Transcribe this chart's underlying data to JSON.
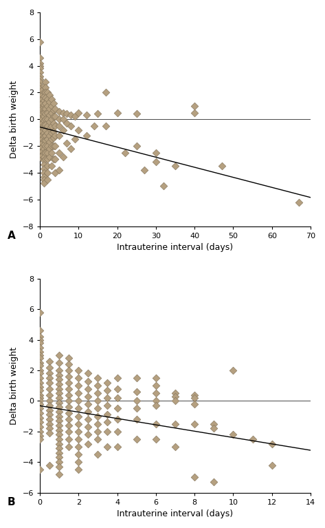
{
  "diamond_color": "#b5a080",
  "diamond_edge_color": "#8a7a60",
  "line_color": "#000000",
  "background_color": "#ffffff",
  "marker_size": 7,
  "marker_edge_width": 0.5,
  "plotA": {
    "slope": -0.0753,
    "intercept": -0.581,
    "xlim": [
      0,
      70
    ],
    "ylim": [
      -8,
      8
    ],
    "xticks": [
      0,
      10,
      20,
      30,
      40,
      50,
      60,
      70
    ],
    "yticks": [
      -8,
      -6,
      -4,
      -2,
      0,
      2,
      4,
      6,
      8
    ],
    "xlabel": "Intrauterine interval (days)",
    "ylabel": "Delta birth weight",
    "label": "A",
    "x_data": [
      0,
      0,
      0,
      0,
      0,
      0,
      0,
      0,
      0,
      0,
      0,
      0,
      0,
      0,
      0,
      0,
      0,
      0,
      0,
      0,
      0,
      0,
      0,
      0,
      0,
      0,
      0,
      0,
      0,
      0,
      0.5,
      0.5,
      0.5,
      0.5,
      0.5,
      0.5,
      0.5,
      0.5,
      0.5,
      0.5,
      0.5,
      0.5,
      0.5,
      0.5,
      0.5,
      0.5,
      1,
      1,
      1,
      1,
      1,
      1,
      1,
      1,
      1,
      1,
      1,
      1,
      1,
      1,
      1,
      1,
      1,
      1,
      1,
      1,
      1,
      1,
      1,
      1,
      1,
      1.5,
      1.5,
      1.5,
      1.5,
      1.5,
      1.5,
      1.5,
      1.5,
      1.5,
      1.5,
      1.5,
      1.5,
      1.5,
      1.5,
      1.5,
      2,
      2,
      2,
      2,
      2,
      2,
      2,
      2,
      2,
      2,
      2,
      2,
      2,
      2,
      2.5,
      2.5,
      2.5,
      2.5,
      2.5,
      2.5,
      2.5,
      2.5,
      2.5,
      2.5,
      3,
      3,
      3,
      3,
      3,
      3,
      3,
      3,
      3,
      3,
      3.5,
      3.5,
      3.5,
      3.5,
      3.5,
      3.5,
      3.5,
      3.5,
      4,
      4,
      4,
      4,
      4,
      4,
      4,
      5,
      5,
      5,
      5,
      5,
      5,
      6,
      6,
      6,
      6,
      7,
      7,
      7,
      8,
      8,
      8,
      9,
      9,
      10,
      10,
      12,
      12,
      14,
      15,
      17,
      17,
      20,
      22,
      25,
      25,
      27,
      30,
      30,
      32,
      35,
      40,
      40,
      47,
      67
    ],
    "y_data": [
      5.8,
      4.6,
      4.2,
      4.0,
      3.8,
      3.5,
      3.2,
      3.0,
      2.8,
      2.5,
      2.3,
      2.0,
      1.8,
      1.5,
      1.2,
      0.9,
      0.7,
      0.4,
      0.2,
      0.0,
      -0.2,
      -0.5,
      -0.8,
      -1.1,
      -1.4,
      -1.7,
      -2.0,
      -2.3,
      -2.5,
      -2.8,
      2.2,
      1.8,
      1.5,
      1.2,
      0.8,
      0.4,
      0.0,
      -0.3,
      -0.6,
      -0.9,
      -1.2,
      -1.5,
      -1.8,
      -2.1,
      -2.4,
      -2.7,
      2.5,
      2.0,
      1.7,
      1.4,
      1.1,
      0.8,
      0.5,
      0.2,
      -0.1,
      -0.4,
      -0.7,
      -1.0,
      -1.3,
      -1.6,
      -1.9,
      -2.2,
      -2.5,
      -2.8,
      -3.1,
      -3.4,
      -3.7,
      -4.0,
      -4.3,
      -4.5,
      -4.8,
      2.8,
      2.4,
      2.0,
      1.6,
      1.2,
      0.8,
      0.4,
      0.0,
      -0.4,
      -0.8,
      -1.2,
      -1.6,
      -2.0,
      -2.5,
      -3.0,
      2.0,
      1.5,
      1.0,
      0.5,
      0.0,
      -0.5,
      -1.0,
      -1.5,
      -2.0,
      -2.5,
      -3.0,
      -3.5,
      -4.0,
      -4.5,
      1.8,
      1.3,
      0.8,
      0.3,
      -0.2,
      -0.7,
      -1.2,
      -1.7,
      -2.2,
      -2.8,
      1.5,
      1.0,
      0.5,
      0.0,
      -0.5,
      -1.0,
      -1.5,
      -2.0,
      -2.5,
      -3.5,
      1.2,
      0.7,
      0.2,
      -0.3,
      -0.9,
      -1.4,
      -2.0,
      -3.0,
      0.8,
      0.2,
      -0.5,
      -1.2,
      -2.0,
      -3.0,
      -4.0,
      0.6,
      0.0,
      -0.5,
      -1.2,
      -2.5,
      -3.8,
      0.5,
      0.0,
      -0.8,
      -2.8,
      0.4,
      -0.3,
      -1.8,
      0.3,
      -0.5,
      -2.2,
      0.2,
      -1.5,
      0.5,
      -0.8,
      0.3,
      -1.2,
      -0.5,
      0.4,
      2.0,
      -0.5,
      0.5,
      -2.5,
      0.4,
      -2.0,
      -3.8,
      -2.5,
      -3.2,
      -5.0,
      -3.5,
      0.5,
      1.0,
      -3.5,
      -6.2
    ]
  },
  "plotB": {
    "slope": -0.2081,
    "intercept": -0.3174,
    "xlim": [
      0,
      14
    ],
    "ylim": [
      -6,
      8
    ],
    "xticks": [
      0,
      2,
      4,
      6,
      8,
      10,
      12,
      14
    ],
    "yticks": [
      -6,
      -4,
      -2,
      0,
      2,
      4,
      6,
      8
    ],
    "xlabel": "Intrauterine interval (days)",
    "ylabel": "Delta birth weight",
    "label": "B",
    "x_data": [
      0,
      0,
      0,
      0,
      0,
      0,
      0,
      0,
      0,
      0,
      0,
      0,
      0,
      0,
      0,
      0,
      0,
      0,
      0,
      0,
      0,
      0,
      0,
      0,
      0,
      0,
      0,
      0,
      0,
      0,
      0.5,
      0.5,
      0.5,
      0.5,
      0.5,
      0.5,
      0.5,
      0.5,
      0.5,
      0.5,
      0.5,
      0.5,
      0.5,
      0.5,
      0.5,
      0.5,
      1,
      1,
      1,
      1,
      1,
      1,
      1,
      1,
      1,
      1,
      1,
      1,
      1,
      1,
      1,
      1,
      1,
      1,
      1,
      1,
      1,
      1,
      1,
      1,
      1,
      1.5,
      1.5,
      1.5,
      1.5,
      1.5,
      1.5,
      1.5,
      1.5,
      1.5,
      1.5,
      1.5,
      1.5,
      1.5,
      1.5,
      1.5,
      2,
      2,
      2,
      2,
      2,
      2,
      2,
      2,
      2,
      2,
      2,
      2,
      2,
      2,
      2.5,
      2.5,
      2.5,
      2.5,
      2.5,
      2.5,
      2.5,
      2.5,
      2.5,
      2.5,
      3,
      3,
      3,
      3,
      3,
      3,
      3,
      3,
      3,
      3,
      3.5,
      3.5,
      3.5,
      3.5,
      3.5,
      3.5,
      3.5,
      3.5,
      4,
      4,
      4,
      4,
      4,
      4,
      4,
      5,
      5,
      5,
      5,
      5,
      5,
      6,
      6,
      6,
      6,
      6,
      6,
      6,
      7,
      7,
      7,
      7,
      7,
      8,
      8,
      8,
      8,
      8,
      9,
      9,
      9,
      10,
      10,
      11,
      12,
      12
    ],
    "y_data": [
      5.8,
      4.6,
      4.2,
      4.0,
      3.8,
      3.5,
      3.2,
      3.0,
      2.8,
      2.5,
      2.3,
      2.0,
      1.8,
      1.5,
      1.2,
      0.9,
      0.7,
      0.4,
      0.2,
      0.0,
      -0.2,
      -0.5,
      -0.8,
      -1.1,
      -1.4,
      -1.7,
      -2.0,
      -2.3,
      -2.5,
      -4.5,
      2.6,
      2.2,
      1.8,
      1.5,
      1.2,
      0.8,
      0.4,
      0.0,
      -0.3,
      -0.6,
      -0.9,
      -1.2,
      -1.5,
      -1.8,
      -2.1,
      -4.2,
      3.0,
      2.5,
      2.0,
      1.7,
      1.4,
      1.1,
      0.8,
      0.5,
      0.2,
      -0.1,
      -0.4,
      -0.7,
      -1.0,
      -1.3,
      -1.6,
      -1.9,
      -2.2,
      -2.5,
      -2.8,
      -3.1,
      -3.4,
      -3.7,
      -4.0,
      -4.3,
      -4.8,
      2.8,
      2.4,
      2.0,
      1.6,
      1.2,
      0.8,
      0.4,
      0.0,
      -0.4,
      -0.8,
      -1.2,
      -1.6,
      -2.0,
      -2.5,
      -3.0,
      2.0,
      1.5,
      1.0,
      0.5,
      0.0,
      -0.5,
      -1.0,
      -1.5,
      -2.0,
      -2.5,
      -3.0,
      -3.5,
      -4.0,
      -4.5,
      1.8,
      1.3,
      0.8,
      0.3,
      -0.2,
      -0.7,
      -1.2,
      -1.7,
      -2.2,
      -2.8,
      1.5,
      1.0,
      0.5,
      0.0,
      -0.5,
      -1.0,
      -1.5,
      -2.0,
      -2.5,
      -3.5,
      1.2,
      0.7,
      0.2,
      -0.3,
      -0.9,
      -1.4,
      -2.0,
      -3.0,
      1.5,
      0.8,
      0.2,
      -0.5,
      -1.2,
      -2.0,
      -3.0,
      1.5,
      0.6,
      0.0,
      -0.5,
      -1.2,
      -2.5,
      1.5,
      1.0,
      0.5,
      0.0,
      -0.3,
      -1.5,
      -2.5,
      0.5,
      0.3,
      0.0,
      -1.5,
      -3.0,
      0.4,
      0.2,
      -0.2,
      -1.5,
      -5.0,
      -1.5,
      -1.8,
      -5.3,
      2.0,
      -2.2,
      -2.5,
      -2.8,
      -4.2
    ]
  }
}
